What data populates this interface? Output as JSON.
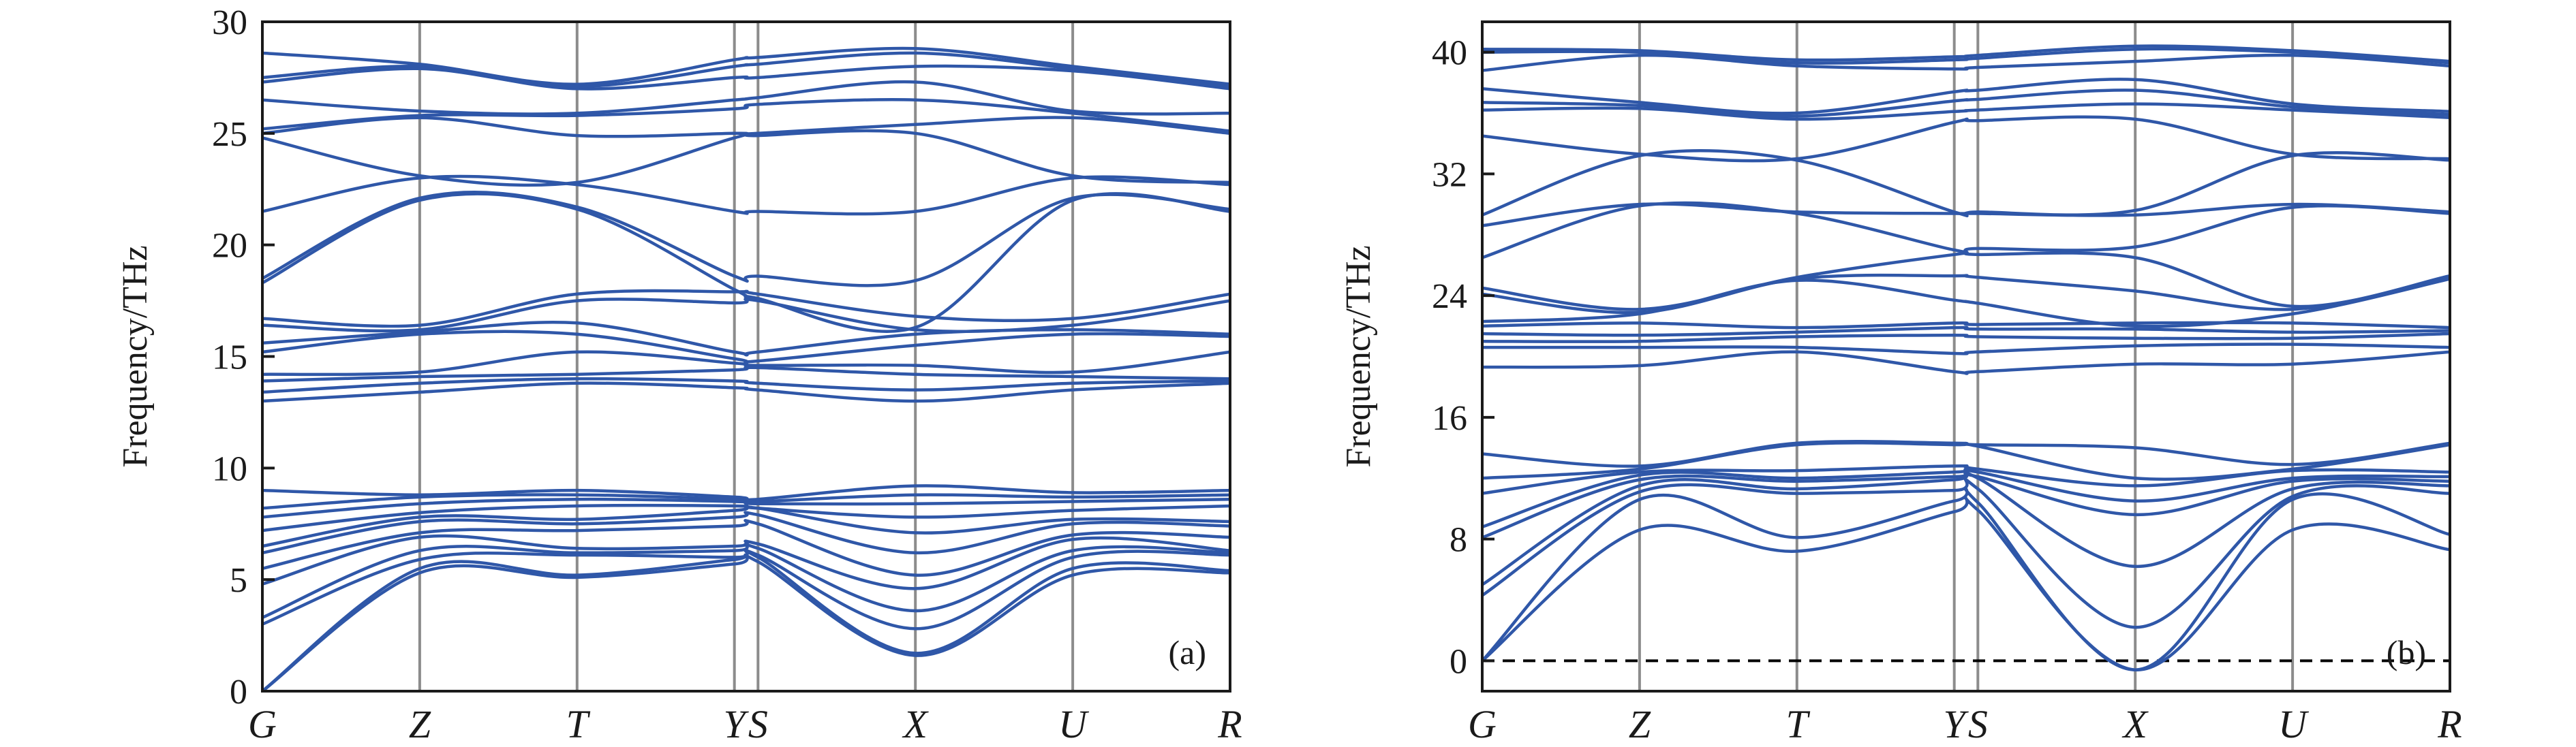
{
  "colors": {
    "band": "#2f57a8",
    "vline": "#8c8c8c",
    "axis": "#1a1a1a",
    "zero_line": "#000000"
  },
  "chart_data": [
    {
      "type": "line",
      "panel_label": "(a)",
      "ylabel": "Frequency/THz",
      "ylim": [
        0,
        30
      ],
      "yticks": [
        0,
        5,
        10,
        15,
        20,
        25,
        30
      ],
      "zero_line": true,
      "x": [
        0,
        1,
        2,
        3.0,
        3.15,
        4.15,
        5.15,
        6.15
      ],
      "categories": [
        "G",
        "Z",
        "T",
        "Y",
        "S",
        "X",
        "U",
        "R"
      ],
      "series": [
        {
          "values": [
            0,
            5.3,
            5.1,
            5.7,
            5.8,
            1.6,
            5.2,
            5.3
          ]
        },
        {
          "values": [
            0,
            5.5,
            5.2,
            5.9,
            6.0,
            1.7,
            5.5,
            5.4
          ]
        },
        {
          "values": [
            3.0,
            5.9,
            6.1,
            6.0,
            6.1,
            2.8,
            6.0,
            6.1
          ]
        },
        {
          "values": [
            3.3,
            6.3,
            6.2,
            6.3,
            6.4,
            3.6,
            6.3,
            6.2
          ]
        },
        {
          "values": [
            4.8,
            6.9,
            6.4,
            6.5,
            6.6,
            4.6,
            6.8,
            6.3
          ]
        },
        {
          "values": [
            5.5,
            7.1,
            7.2,
            7.4,
            7.5,
            5.2,
            7.0,
            6.9
          ]
        },
        {
          "values": [
            6.2,
            7.6,
            7.5,
            7.8,
            7.9,
            6.2,
            7.5,
            7.4
          ]
        },
        {
          "values": [
            6.5,
            7.8,
            7.7,
            8.1,
            8.2,
            7.1,
            7.7,
            7.6
          ]
        },
        {
          "values": [
            7.2,
            8.0,
            8.3,
            8.3,
            8.2,
            7.8,
            8.1,
            8.3
          ]
        },
        {
          "values": [
            7.8,
            8.4,
            8.6,
            8.5,
            8.4,
            8.4,
            8.5,
            8.6
          ]
        },
        {
          "values": [
            8.2,
            8.7,
            8.8,
            8.6,
            8.5,
            8.8,
            8.7,
            8.8
          ]
        },
        {
          "values": [
            9.0,
            8.8,
            9.0,
            8.7,
            8.6,
            9.2,
            8.9,
            9.0
          ]
        },
        {
          "values": [
            13.0,
            13.4,
            13.8,
            13.6,
            13.5,
            13.0,
            13.5,
            13.8
          ]
        },
        {
          "values": [
            13.4,
            13.8,
            14.0,
            13.9,
            13.8,
            13.5,
            13.8,
            13.9
          ]
        },
        {
          "values": [
            13.9,
            14.1,
            14.2,
            14.4,
            14.5,
            14.2,
            14.1,
            14.0
          ]
        },
        {
          "values": [
            14.2,
            14.3,
            15.2,
            14.7,
            14.6,
            14.6,
            14.3,
            15.2
          ]
        },
        {
          "values": [
            15.2,
            16.0,
            16.0,
            14.9,
            14.8,
            15.5,
            16.0,
            15.9
          ]
        },
        {
          "values": [
            15.6,
            16.1,
            16.5,
            15.2,
            15.2,
            16.0,
            16.2,
            16.0
          ]
        },
        {
          "values": [
            16.4,
            16.2,
            17.5,
            17.4,
            17.5,
            16.2,
            16.4,
            17.5
          ]
        },
        {
          "values": [
            16.7,
            16.4,
            17.8,
            17.9,
            17.8,
            16.8,
            16.7,
            17.8
          ]
        },
        {
          "values": [
            18.3,
            22.0,
            21.6,
            18.0,
            17.6,
            16.3,
            22.0,
            21.5
          ]
        },
        {
          "values": [
            18.5,
            22.1,
            21.7,
            18.6,
            18.6,
            18.4,
            22.1,
            21.6
          ]
        },
        {
          "values": [
            21.5,
            23.0,
            22.7,
            21.5,
            21.5,
            21.5,
            23.0,
            22.7
          ]
        },
        {
          "values": [
            24.8,
            23.1,
            22.8,
            24.8,
            24.9,
            25.0,
            23.1,
            22.8
          ]
        },
        {
          "values": [
            25.0,
            25.7,
            24.9,
            25.0,
            25.0,
            25.4,
            25.7,
            25.0
          ]
        },
        {
          "values": [
            25.2,
            25.8,
            25.8,
            26.1,
            26.3,
            26.5,
            25.9,
            25.1
          ]
        },
        {
          "values": [
            26.5,
            26.0,
            25.9,
            26.5,
            26.6,
            27.3,
            26.0,
            25.9
          ]
        },
        {
          "values": [
            27.3,
            27.9,
            27.0,
            27.5,
            27.5,
            28.0,
            27.8,
            27.0
          ]
        },
        {
          "values": [
            27.5,
            28.0,
            27.1,
            28.0,
            28.1,
            28.6,
            27.9,
            27.1
          ]
        },
        {
          "values": [
            28.6,
            28.1,
            27.2,
            28.3,
            28.4,
            28.8,
            28.0,
            27.2
          ]
        }
      ]
    },
    {
      "type": "line",
      "panel_label": "(b)",
      "ylabel": "Frequency/THz",
      "ylim": [
        -2,
        42
      ],
      "yticks": [
        0,
        8,
        16,
        24,
        32,
        40
      ],
      "zero_line": true,
      "x": [
        0,
        1,
        2,
        3.0,
        3.15,
        4.15,
        5.15,
        6.15
      ],
      "categories": [
        "G",
        "Z",
        "T",
        "Y",
        "S",
        "X",
        "U",
        "R"
      ],
      "series": [
        {
          "values": [
            0,
            8.6,
            7.2,
            9.8,
            9.9,
            -0.6,
            8.6,
            7.3
          ]
        },
        {
          "values": [
            0,
            10.6,
            8.1,
            10.5,
            10.4,
            -0.6,
            10.6,
            8.3
          ]
        },
        {
          "values": [
            4.3,
            11.1,
            11.0,
            11.2,
            11.3,
            2.2,
            10.8,
            11.0
          ]
        },
        {
          "values": [
            5.0,
            11.5,
            11.3,
            11.9,
            12.0,
            6.2,
            11.3,
            11.5
          ]
        },
        {
          "values": [
            8.1,
            11.9,
            11.8,
            12.1,
            12.1,
            9.6,
            11.8,
            11.8
          ]
        },
        {
          "values": [
            8.8,
            12.2,
            12.0,
            12.4,
            12.4,
            10.5,
            12.0,
            12.1
          ]
        },
        {
          "values": [
            11.0,
            12.4,
            12.5,
            12.8,
            12.6,
            11.5,
            12.5,
            12.4
          ]
        },
        {
          "values": [
            12.0,
            12.6,
            14.2,
            14.2,
            14.1,
            12.0,
            12.6,
            14.2
          ]
        },
        {
          "values": [
            13.6,
            12.8,
            14.3,
            14.3,
            14.2,
            14.0,
            12.9,
            14.3
          ]
        },
        {
          "values": [
            19.3,
            19.4,
            20.3,
            19.0,
            19.0,
            19.5,
            19.5,
            20.3
          ]
        },
        {
          "values": [
            20.6,
            20.6,
            20.6,
            20.2,
            20.3,
            20.7,
            20.8,
            20.6
          ]
        },
        {
          "values": [
            21.0,
            21.0,
            21.3,
            21.4,
            21.3,
            21.2,
            21.2,
            21.5
          ]
        },
        {
          "values": [
            21.5,
            21.4,
            21.6,
            21.9,
            21.8,
            21.8,
            21.6,
            21.7
          ]
        },
        {
          "values": [
            22.0,
            22.2,
            21.9,
            22.2,
            22.1,
            22.2,
            22.2,
            21.9
          ]
        },
        {
          "values": [
            22.3,
            22.8,
            25.0,
            23.7,
            23.5,
            22.0,
            22.8,
            25.1
          ]
        },
        {
          "values": [
            24.1,
            22.9,
            25.1,
            25.3,
            25.2,
            24.3,
            23.1,
            25.2
          ]
        },
        {
          "values": [
            24.5,
            23.1,
            25.2,
            26.7,
            26.7,
            26.5,
            23.3,
            25.3
          ]
        },
        {
          "values": [
            26.5,
            29.9,
            29.4,
            27.0,
            27.1,
            27.2,
            29.8,
            29.4
          ]
        },
        {
          "values": [
            28.6,
            30.0,
            29.5,
            29.4,
            29.4,
            29.3,
            30.0,
            29.5
          ]
        },
        {
          "values": [
            29.3,
            33.2,
            32.9,
            29.5,
            29.5,
            29.6,
            33.2,
            32.9
          ]
        },
        {
          "values": [
            34.5,
            33.3,
            33.0,
            35.4,
            35.5,
            35.6,
            33.3,
            33.0
          ]
        },
        {
          "values": [
            36.2,
            36.3,
            35.6,
            36.1,
            36.2,
            36.6,
            36.2,
            35.7
          ]
        },
        {
          "values": [
            36.7,
            36.5,
            35.8,
            36.8,
            36.9,
            37.5,
            36.4,
            35.9
          ]
        },
        {
          "values": [
            37.6,
            36.7,
            36.0,
            37.4,
            37.5,
            38.2,
            36.6,
            36.1
          ]
        },
        {
          "values": [
            38.8,
            39.8,
            39.1,
            38.9,
            39.0,
            39.4,
            39.8,
            39.1
          ]
        },
        {
          "values": [
            40.0,
            40.0,
            39.3,
            39.5,
            39.6,
            40.2,
            40.0,
            39.3
          ]
        },
        {
          "values": [
            40.2,
            40.1,
            39.5,
            39.7,
            39.8,
            40.4,
            40.1,
            39.4
          ]
        }
      ]
    }
  ]
}
